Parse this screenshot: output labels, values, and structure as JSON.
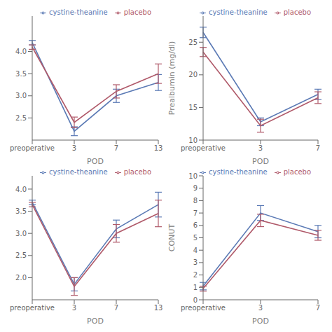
{
  "chart_data": [
    {
      "type": "line",
      "xlabel": "POD",
      "categories": [
        "preoperative",
        "3",
        "7",
        "13"
      ],
      "series": [
        {
          "name": "cystine-theanine",
          "color": "#5b7ab5",
          "values": [
            4.2,
            2.2,
            3.0,
            3.3
          ],
          "errors": [
            0.05,
            0.1,
            0.15,
            0.18
          ]
        },
        {
          "name": "placebo",
          "color": "#b05a6a",
          "values": [
            4.1,
            2.4,
            3.1,
            3.5
          ],
          "errors": [
            0.05,
            0.12,
            0.15,
            0.22
          ]
        }
      ],
      "ylim": [
        2.0,
        4.8
      ],
      "yticks": [
        2.5,
        {
          "value": 3.0,
          "label": "3.0"
        },
        3.5,
        {
          "value": 4.0,
          "label": "4.0"
        }
      ],
      "grid": false,
      "legend": "upper right"
    },
    {
      "type": "line",
      "xlabel": "POD",
      "ylabel": "Prealbumin (mg/dl)",
      "categories": [
        "preoperative",
        "3",
        "7"
      ],
      "series": [
        {
          "name": "cystine-theanine",
          "color": "#5b7ab5",
          "values": [
            26.5,
            12.8,
            17.0
          ],
          "errors": [
            0.8,
            0.6,
            0.8
          ]
        },
        {
          "name": "placebo",
          "color": "#b05a6a",
          "values": [
            23.5,
            12.2,
            16.5
          ],
          "errors": [
            0.7,
            1.0,
            0.9
          ]
        }
      ],
      "ylim": [
        10,
        29
      ],
      "yticks": [
        10,
        15,
        20,
        25
      ],
      "grid": false,
      "legend": "upper right"
    },
    {
      "type": "line",
      "xlabel": "POD",
      "categories": [
        "preoperative",
        "3",
        "7",
        "13"
      ],
      "series": [
        {
          "name": "cystine-theanine",
          "color": "#5b7ab5",
          "values": [
            3.7,
            1.85,
            3.1,
            3.65
          ],
          "errors": [
            0.05,
            0.15,
            0.2,
            0.28
          ]
        },
        {
          "name": "placebo",
          "color": "#b05a6a",
          "values": [
            3.65,
            1.8,
            3.0,
            3.45
          ],
          "errors": [
            0.05,
            0.2,
            0.2,
            0.3
          ]
        }
      ],
      "ylim": [
        1.5,
        4.3
      ],
      "yticks": [
        {
          "value": 2.0,
          "label": "2.0"
        },
        2.5,
        {
          "value": 3.0,
          "label": "3.0"
        },
        3.5,
        {
          "value": 4.0,
          "label": "4.0"
        }
      ],
      "grid": false,
      "legend": "upper right"
    },
    {
      "type": "line",
      "xlabel": "POD",
      "ylabel": "CONUT",
      "categories": [
        "preoperative",
        "3",
        "7"
      ],
      "series": [
        {
          "name": "cystine-theanine",
          "color": "#5b7ab5",
          "values": [
            1.1,
            7.0,
            5.5
          ],
          "errors": [
            0.3,
            0.6,
            0.5
          ]
        },
        {
          "name": "placebo",
          "color": "#b05a6a",
          "values": [
            0.9,
            6.4,
            5.2
          ],
          "errors": [
            0.2,
            0.5,
            0.4
          ]
        }
      ],
      "ylim": [
        0,
        10
      ],
      "yticks": [
        0,
        1,
        2,
        3,
        4,
        5,
        6,
        7,
        8,
        9,
        10
      ],
      "grid": false,
      "legend": "upper right"
    }
  ]
}
